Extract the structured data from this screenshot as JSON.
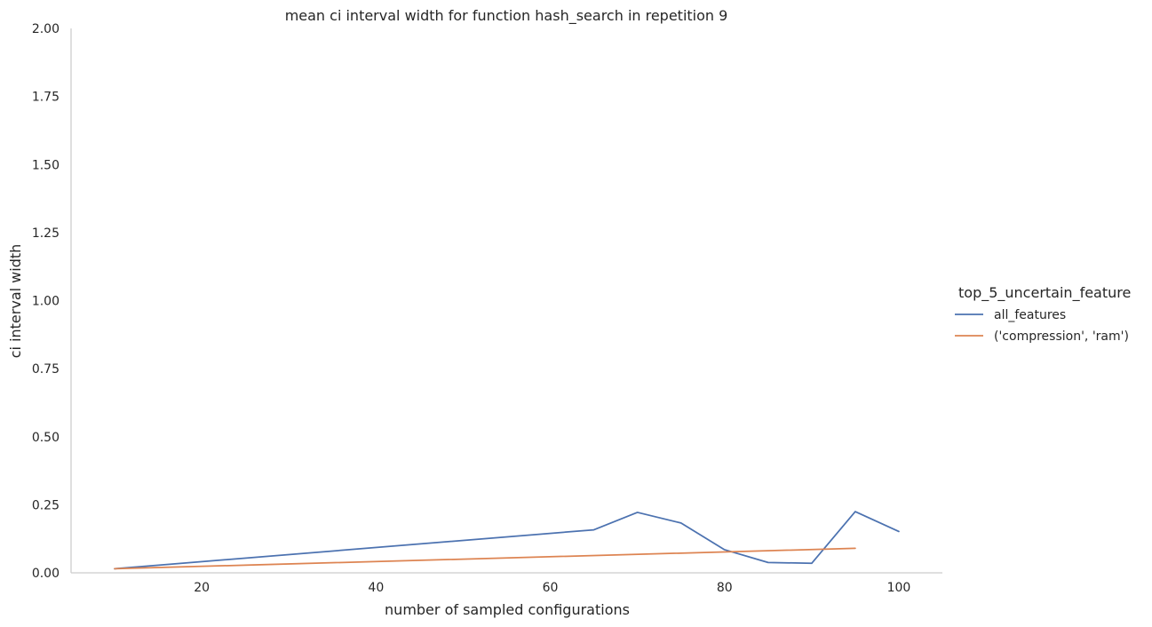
{
  "chart_data": {
    "type": "line",
    "title": "mean ci interval width for function hash_search in repetition 9",
    "xlabel": "number of sampled configurations",
    "ylabel": "ci interval width",
    "xlim": [
      5,
      105
    ],
    "ylim": [
      0,
      2
    ],
    "xticks": [
      "20",
      "40",
      "60",
      "80",
      "100"
    ],
    "xtick_values": [
      20,
      40,
      60,
      80,
      100
    ],
    "yticks": [
      "0.00",
      "0.25",
      "0.50",
      "0.75",
      "1.00",
      "1.25",
      "1.50",
      "1.75",
      "2.00"
    ],
    "ytick_values": [
      0,
      0.25,
      0.5,
      0.75,
      1.0,
      1.25,
      1.5,
      1.75,
      2.0
    ],
    "grid": false,
    "legend": {
      "title": "top_5_uncertain_feature",
      "placement": "right"
    },
    "series": [
      {
        "name": "all_features",
        "color": "#4c72b0",
        "x": [
          10,
          65,
          70,
          75,
          80,
          85,
          90,
          95,
          100
        ],
        "y": [
          0.015,
          0.158,
          0.222,
          0.183,
          0.085,
          0.038,
          0.035,
          0.225,
          0.152
        ]
      },
      {
        "name": "('compression', 'ram')",
        "color": "#dd8452",
        "x": [
          10,
          95
        ],
        "y": [
          0.015,
          0.09
        ]
      }
    ]
  }
}
